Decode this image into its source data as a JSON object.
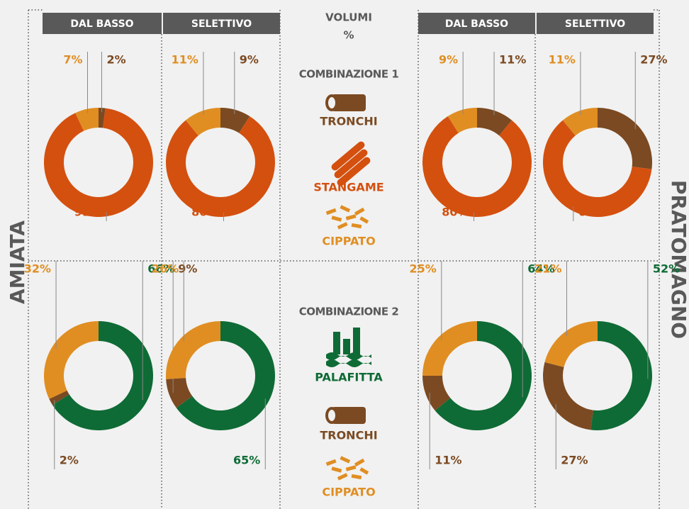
{
  "column_headers": [
    "DAL BASSO",
    "SELETTIVO",
    "DAL BASSO",
    "SELETTIVO"
  ],
  "center_header": [
    "VOLUMI",
    "%"
  ],
  "regions": [
    "AMIATA",
    "PRATOMAGNO"
  ],
  "combinations": [
    {
      "title": "COMBINAZIONE 1",
      "items": [
        {
          "label": "TRONCHI",
          "color": "#7b4a22"
        },
        {
          "label": "STANGAME",
          "color": "#d4500f"
        },
        {
          "label": "CIPPATO",
          "color": "#e08e22"
        }
      ]
    },
    {
      "title": "COMBINAZIONE 2",
      "items": [
        {
          "label": "PALAFITTA",
          "color": "#0e6b35"
        },
        {
          "label": "TRONCHI",
          "color": "#7b4a22"
        },
        {
          "label": "CIPPATO",
          "color": "#e08e22"
        }
      ]
    }
  ],
  "chart_data": [
    {
      "type": "donut",
      "values": [
        2,
        91,
        7
      ],
      "value_labels": [
        "2%",
        "91%",
        "7%"
      ],
      "colors": [
        "#7b4a22",
        "#d4500f",
        "#e08e22"
      ]
    },
    {
      "type": "donut",
      "values": [
        9,
        80,
        11
      ],
      "value_labels": [
        "9%",
        "80%",
        "11%"
      ],
      "colors": [
        "#7b4a22",
        "#d4500f",
        "#e08e22"
      ]
    },
    {
      "type": "donut",
      "values": [
        11,
        80,
        9
      ],
      "value_labels": [
        "11%",
        "80%",
        "9%"
      ],
      "colors": [
        "#7b4a22",
        "#d4500f",
        "#e08e22"
      ]
    },
    {
      "type": "donut",
      "values": [
        27,
        62,
        11
      ],
      "value_labels": [
        "27%",
        "62%",
        "11%"
      ],
      "colors": [
        "#7b4a22",
        "#d4500f",
        "#e08e22"
      ]
    },
    {
      "type": "donut",
      "values": [
        66,
        2,
        32
      ],
      "value_labels": [
        "66%",
        "2%",
        "32%"
      ],
      "colors": [
        "#0e6b35",
        "#7b4a22",
        "#e08e22"
      ]
    },
    {
      "type": "donut",
      "values": [
        65,
        9,
        26
      ],
      "value_labels": [
        "65%",
        "9%",
        "26%"
      ],
      "colors": [
        "#0e6b35",
        "#7b4a22",
        "#e08e22"
      ]
    },
    {
      "type": "donut",
      "values": [
        64,
        11,
        25
      ],
      "value_labels": [
        "64%",
        "11%",
        "25%"
      ],
      "colors": [
        "#0e6b35",
        "#7b4a22",
        "#e08e22"
      ]
    },
    {
      "type": "donut",
      "values": [
        52,
        27,
        21
      ],
      "value_labels": [
        "52%",
        "27%",
        "21%"
      ],
      "colors": [
        "#0e6b35",
        "#7b4a22",
        "#e08e22"
      ]
    }
  ]
}
